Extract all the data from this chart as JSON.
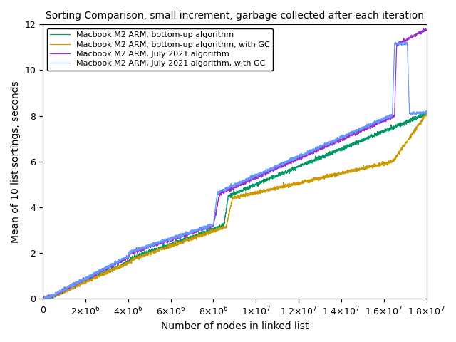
{
  "title": "Sorting Comparison, small increment, garbage collected after each iteration",
  "xlabel": "Number of nodes in linked list",
  "ylabel": "Mean of 10 list sortings, seconds",
  "xlim": [
    0,
    18000000.0
  ],
  "ylim": [
    0,
    12
  ],
  "legend": [
    "Macbook M2 ARM, July 2021 algorithm",
    "Macbook M2 ARM, bottom-up algorithm",
    "Macbook M2 ARM, July 2021 algorithm, with GC",
    "Macbook M2 ARM, bottom-up algorithm, with GC"
  ],
  "colors": [
    "#9933cc",
    "#009966",
    "#6699ff",
    "#cc9900"
  ],
  "segments_july": {
    "x": [
      0,
      500000,
      4000000,
      4100000,
      8000000,
      8300000,
      16500000,
      16600000,
      18000000
    ],
    "y": [
      0,
      0.15,
      1.8,
      2.0,
      3.2,
      4.6,
      8.0,
      11.1,
      11.8
    ]
  },
  "segments_bottomup": {
    "x": [
      0,
      500000,
      4000000,
      4200000,
      8500000,
      8700000,
      18000000
    ],
    "y": [
      0,
      0.12,
      1.6,
      1.8,
      3.2,
      4.5,
      8.1
    ]
  },
  "segments_july_gc": {
    "x": [
      0,
      500000,
      4000000,
      4100000,
      8000000,
      8200000,
      16400000,
      16500000,
      17100000,
      17200000,
      18000000
    ],
    "y": [
      0,
      0.16,
      1.85,
      2.05,
      3.25,
      4.65,
      8.05,
      11.15,
      11.15,
      8.1,
      8.15
    ]
  },
  "segments_bottomup_gc": {
    "x": [
      0,
      500000,
      4000000,
      4300000,
      8600000,
      8900000,
      16400000,
      16500000,
      18000000
    ],
    "y": [
      0,
      0.11,
      1.55,
      1.75,
      3.15,
      4.4,
      6.0,
      6.1,
      8.1
    ]
  }
}
